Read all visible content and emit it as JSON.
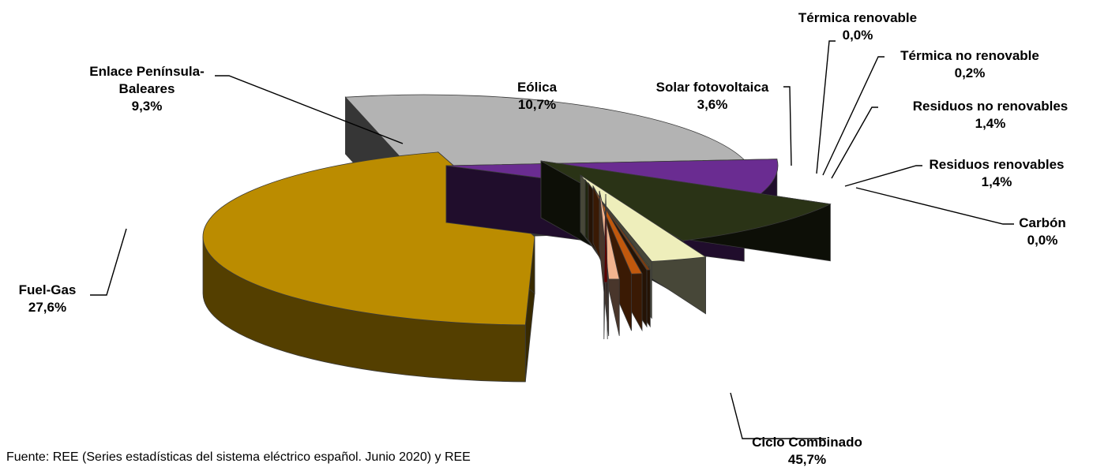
{
  "chart_data": {
    "type": "pie",
    "title": "",
    "source": "Fuente: REE (Series estadísticas del sistema eléctrico español. Junio 2020) y REE",
    "slices": [
      {
        "label": "Ciclo Combinado",
        "label_lines": [
          "Ciclo Combinado"
        ],
        "value": 45.7,
        "value_text": "45,7%",
        "color": "#bb8c00"
      },
      {
        "label": "Fuel-Gas",
        "label_lines": [
          "Fuel-Gas"
        ],
        "value": 27.6,
        "value_text": "27,6%",
        "color": "#b3b3b3"
      },
      {
        "label": "Enlace Península-Baleares",
        "label_lines": [
          "Enlace Península-",
          "Baleares"
        ],
        "value": 9.3,
        "value_text": "9,3%",
        "color": "#6a2c91"
      },
      {
        "label": "Eólica",
        "label_lines": [
          "Eólica"
        ],
        "value": 10.7,
        "value_text": "10,7%",
        "color": "#2a3316"
      },
      {
        "label": "Solar fotovoltaica",
        "label_lines": [
          "Solar fotovoltaica"
        ],
        "value": 3.6,
        "value_text": "3,6%",
        "color": "#eeeebb"
      },
      {
        "label": "Térmica renovable",
        "label_lines": [
          "Térmica renovable"
        ],
        "value": 0.0,
        "value_text": "0,0%",
        "color": "#6b7a30"
      },
      {
        "label": "Térmica no renovable",
        "label_lines": [
          "Térmica no renovable"
        ],
        "value": 0.2,
        "value_text": "0,2%",
        "color": "#7a3e12"
      },
      {
        "label": "Residuos no renovables",
        "label_lines": [
          "Residuos no renovables"
        ],
        "value": 1.4,
        "value_text": "1,4%",
        "color": "#c0580d"
      },
      {
        "label": "Residuos renovables",
        "label_lines": [
          "Residuos renovables"
        ],
        "value": 1.4,
        "value_text": "1,4%",
        "color": "#f2b48f"
      },
      {
        "label": "Carbón",
        "label_lines": [
          "Carbón"
        ],
        "value": 0.0,
        "value_text": "0,0%",
        "color": "#5c0000"
      }
    ]
  }
}
